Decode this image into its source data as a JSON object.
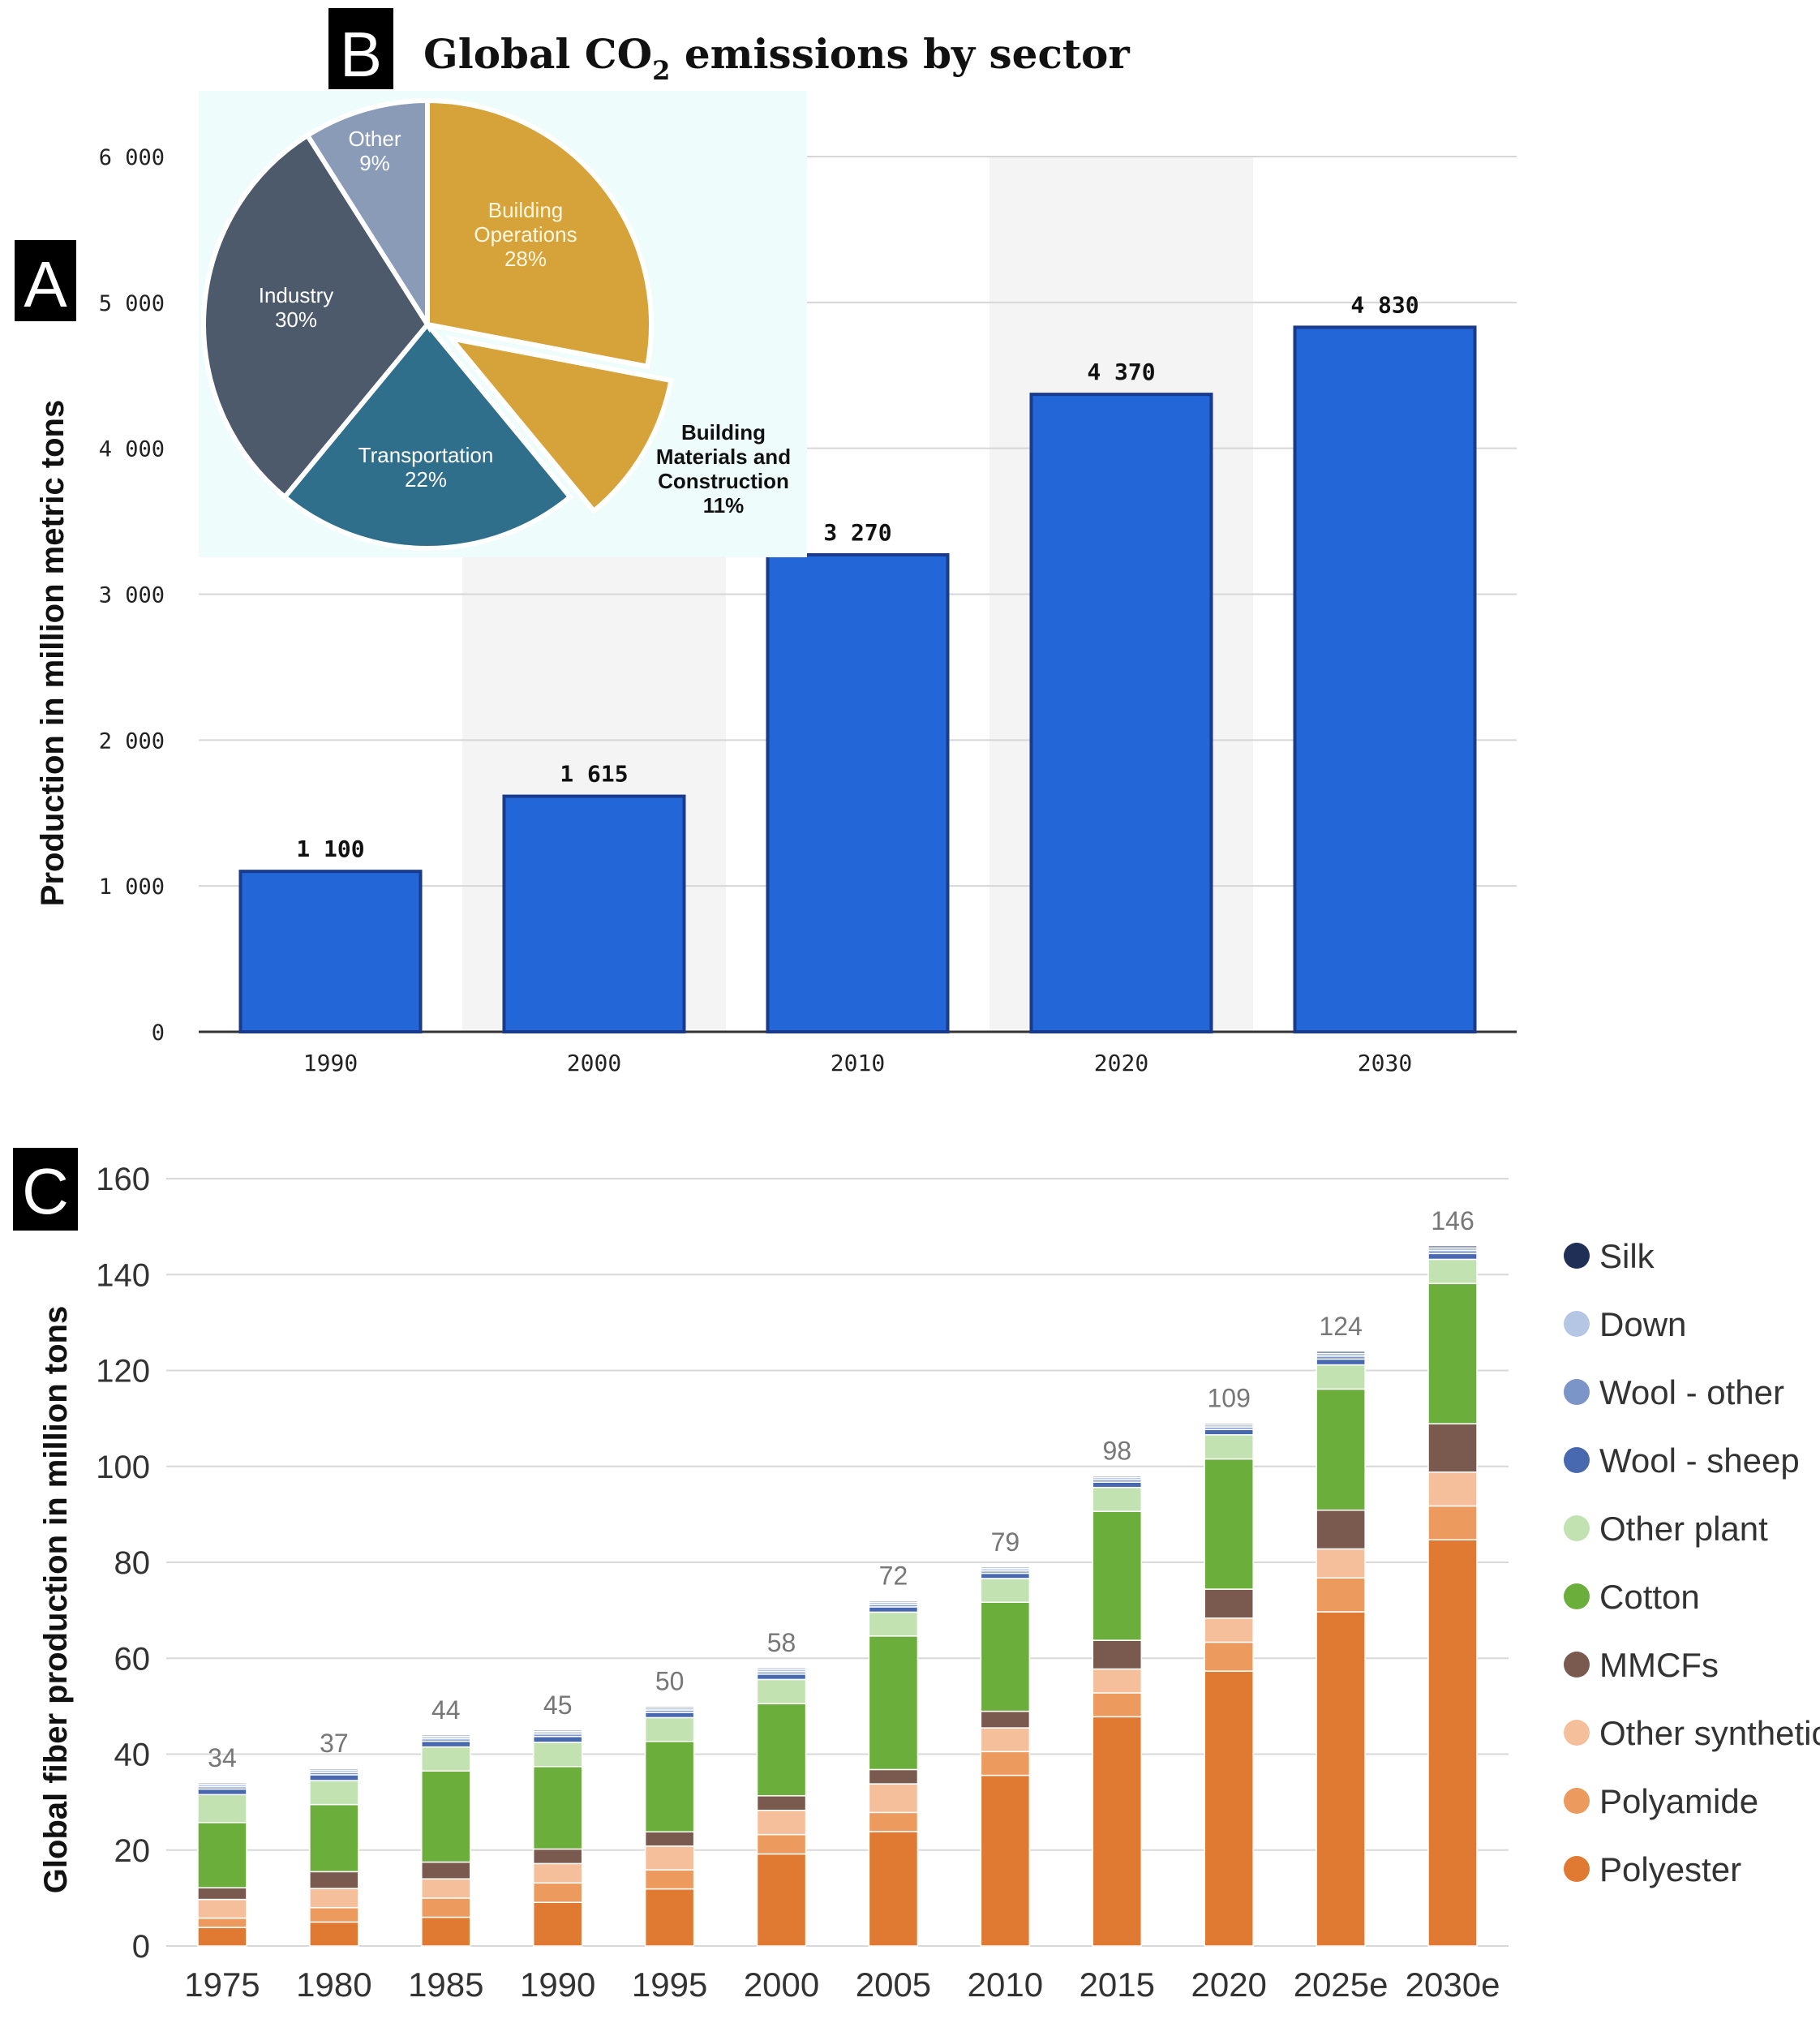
{
  "panels": {
    "a": {
      "label": "A"
    },
    "b": {
      "label": "B"
    },
    "c": {
      "label": "C"
    }
  },
  "chart_data": [
    {
      "id": "A",
      "type": "bar",
      "title": "",
      "xlabel": "",
      "ylabel": "Production in million  metric tons",
      "categories": [
        "1990",
        "2000",
        "2010",
        "2020",
        "2030"
      ],
      "values": [
        1100,
        1615,
        3270,
        4370,
        4830
      ],
      "value_labels": [
        "1 100",
        "1 615",
        "3 270",
        "4 370",
        "4 830"
      ],
      "yticks": [
        0,
        1000,
        2000,
        3000,
        4000,
        5000,
        6000
      ],
      "ytick_labels": [
        "0",
        "1 000",
        "2 000",
        "3 000",
        "4 000",
        "5 000",
        "6 000"
      ],
      "ylim": [
        0,
        6000
      ],
      "grid": true,
      "bar_color": "#2266d8",
      "bar_edge": "#1a3a8c"
    },
    {
      "id": "B",
      "type": "pie",
      "title_pre": "Global CO",
      "title_sub": "2",
      "title_post": " emissions by sector",
      "slices": [
        {
          "name": "Building Operations",
          "value": 28,
          "label": "28%",
          "color": "#d6a33a",
          "exploded": false
        },
        {
          "name": "Building Materials and Construction",
          "value": 11,
          "label": "11%",
          "color": "#d6a33a",
          "exploded": true
        },
        {
          "name": "Transportation",
          "value": 22,
          "label": "22%",
          "color": "#2f6f8c",
          "exploded": false
        },
        {
          "name": "Industry",
          "value": 30,
          "label": "30%",
          "color": "#4d5a6c",
          "exploded": false
        },
        {
          "name": "Other",
          "value": 9,
          "label": "9%",
          "color": "#8a9bb8",
          "exploded": false
        }
      ],
      "background": "#eefcfc"
    },
    {
      "id": "C",
      "type": "bar",
      "stacked": true,
      "title": "",
      "xlabel": "",
      "ylabel": "Global fiber production in million tons",
      "categories": [
        "1975",
        "1980",
        "1985",
        "1990",
        "1995",
        "2000",
        "2005",
        "2010",
        "2015",
        "2020",
        "2025e",
        "2030e"
      ],
      "totals": [
        34,
        37,
        44,
        45,
        50,
        58,
        72,
        79,
        98,
        109,
        124,
        146
      ],
      "yticks": [
        0,
        20,
        40,
        60,
        80,
        100,
        120,
        140,
        160
      ],
      "ylim": [
        0,
        160
      ],
      "grid": true,
      "legend_position": "right",
      "series": [
        {
          "name": "Polyester",
          "color": "#e07a32",
          "values": [
            4,
            5,
            6,
            9,
            12,
            19,
            24,
            36,
            48,
            57,
            69,
            84
          ]
        },
        {
          "name": "Polyamide",
          "color": "#ec9a5e",
          "values": [
            2,
            3,
            4,
            4,
            4,
            4,
            4,
            5,
            5,
            6,
            7,
            7
          ]
        },
        {
          "name": "Other synthetics",
          "color": "#f5bf9b",
          "values": [
            4,
            4,
            4,
            4,
            5,
            5,
            6,
            5,
            5,
            5,
            6,
            7
          ]
        },
        {
          "name": "MMCFs",
          "color": "#7a5a4e",
          "values": [
            2.5,
            3.5,
            3.5,
            3,
            3,
            3,
            3,
            3.5,
            6,
            6,
            8,
            10
          ]
        },
        {
          "name": "Cotton",
          "color": "#6cae3c",
          "values": [
            14,
            14,
            19,
            17,
            19,
            19,
            28,
            23,
            27,
            27,
            25,
            29
          ]
        },
        {
          "name": "Other plant",
          "color": "#c2e2b2",
          "values": [
            6,
            5,
            5,
            5,
            5,
            5,
            5,
            5,
            5,
            5,
            5,
            5
          ]
        },
        {
          "name": "Wool - sheep",
          "color": "#4868b0",
          "values": [
            1.2,
            1.2,
            1.2,
            1.2,
            1.1,
            1.1,
            1.1,
            1.1,
            1.1,
            1.1,
            1.2,
            1.2
          ]
        },
        {
          "name": "Wool - other",
          "color": "#7b95c8",
          "values": [
            0.5,
            0.5,
            0.5,
            0.5,
            0.5,
            0.5,
            0.5,
            0.5,
            0.5,
            0.5,
            0.6,
            0.6
          ]
        },
        {
          "name": "Down",
          "color": "#b5c6e4",
          "values": [
            0.5,
            0.5,
            0.5,
            0.5,
            0.5,
            0.5,
            0.5,
            0.5,
            0.5,
            0.5,
            0.6,
            0.6
          ]
        },
        {
          "name": "Silk",
          "color": "#1f2f55",
          "values": [
            0.3,
            0.3,
            0.3,
            0.3,
            0.3,
            0.3,
            0.3,
            0.3,
            0.3,
            0.3,
            0.4,
            0.4
          ]
        }
      ],
      "legend_order": [
        "Silk",
        "Down",
        "Wool - other",
        "Wool - sheep",
        "Other plant",
        "Cotton",
        "MMCFs",
        "Other synthetics",
        "Polyamide",
        "Polyester"
      ]
    }
  ]
}
